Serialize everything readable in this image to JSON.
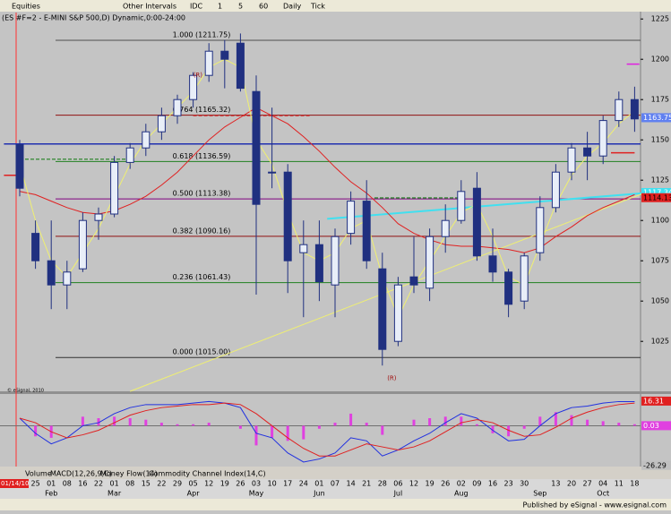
{
  "toolbar": {
    "items": [
      "Equities",
      "Other Intervals",
      "IDC",
      "1",
      "5",
      "60",
      "Daily",
      "Tick"
    ]
  },
  "tabs": [
    "Volume",
    "MACD(12,26,9,C)",
    "Money Flow(14)",
    "Commodity Channel Index(14,C)"
  ],
  "status": "Published by eSignal - www.esignal.com",
  "copyright": "© eSignal, 2010",
  "chart_data": {
    "type": "candlestick",
    "title": "(ES #F=2 - E-MINI S&P 500,D) Dynamic,0:00-24:00",
    "categories": [
      "01/14/10",
      "25",
      "01",
      "08",
      "16",
      "22",
      "01",
      "08",
      "15",
      "22",
      "29",
      "05",
      "12",
      "19",
      "26",
      "03",
      "10",
      "17",
      "24",
      "01",
      "07",
      "14",
      "21",
      "28",
      "06",
      "12",
      "19",
      "26",
      "02",
      "09",
      "16",
      "23",
      "30",
      null,
      "13",
      "20",
      "27",
      "04",
      "11",
      "18"
    ],
    "months": [
      null,
      null,
      "Feb",
      null,
      null,
      null,
      "Mar",
      null,
      null,
      null,
      null,
      "Apr",
      null,
      null,
      null,
      "May",
      null,
      null,
      null,
      "Jun",
      null,
      null,
      null,
      null,
      "Jul",
      null,
      null,
      null,
      "Aug",
      null,
      null,
      null,
      null,
      "Sep",
      null,
      null,
      null,
      "Oct",
      null,
      null
    ],
    "open": [
      1147,
      1092,
      1075,
      1060,
      1070,
      1100,
      1104,
      1136,
      1145,
      1155,
      1165,
      1175,
      1190,
      1205,
      1210,
      1180,
      1130,
      1130,
      1080,
      1085,
      1060,
      1092,
      1112,
      1070,
      1025,
      1065,
      1058,
      1090,
      1100,
      1120,
      1078,
      1068,
      1050,
      1080,
      1108,
      1130,
      1145,
      1140,
      1162,
      1175
    ],
    "high": [
      1150,
      1100,
      1100,
      1075,
      1105,
      1108,
      1140,
      1148,
      1160,
      1170,
      1178,
      1192,
      1210,
      1212,
      1216,
      1190,
      1170,
      1135,
      1100,
      1100,
      1095,
      1118,
      1125,
      1080,
      1065,
      1090,
      1095,
      1110,
      1125,
      1130,
      1095,
      1070,
      1080,
      1115,
      1135,
      1148,
      1155,
      1165,
      1180,
      1183
    ],
    "low": [
      1115,
      1070,
      1045,
      1045,
      1068,
      1088,
      1102,
      1132,
      1140,
      1150,
      1160,
      1170,
      1186,
      1182,
      1180,
      1054,
      1120,
      1055,
      1040,
      1050,
      1040,
      1085,
      1070,
      1010,
      1022,
      1055,
      1050,
      1080,
      1098,
      1075,
      1062,
      1040,
      1045,
      1075,
      1105,
      1125,
      1125,
      1135,
      1158,
      1155
    ],
    "close": [
      1120,
      1075,
      1060,
      1068,
      1100,
      1104,
      1136,
      1145,
      1155,
      1165,
      1175,
      1190,
      1205,
      1200,
      1182,
      1110,
      1130,
      1075,
      1085,
      1062,
      1090,
      1112,
      1075,
      1020,
      1060,
      1060,
      1090,
      1100,
      1118,
      1078,
      1068,
      1048,
      1078,
      1108,
      1130,
      1145,
      1140,
      1162,
      1175,
      1163
    ],
    "up_color": "#e8eef8",
    "down_color": "#203080",
    "edge_color": "#203080",
    "series": [
      {
        "color": "#e02020",
        "values": [
          1118,
          1116,
          1112,
          1108,
          1105,
          1104,
          1106,
          1110,
          1115,
          1122,
          1130,
          1140,
          1150,
          1158,
          1164,
          1170,
          1165,
          1160,
          1152,
          1143,
          1133,
          1124,
          1117,
          1108,
          1098,
          1092,
          1088,
          1085,
          1084,
          1084,
          1083,
          1082,
          1080,
          1083,
          1090,
          1096,
          1103,
          1108,
          1112,
          1116
        ]
      },
      {
        "color": "#f0f070",
        "values": [
          1135,
          1100,
          1075,
          1065,
          1080,
          1095,
          1115,
          1135,
          1150,
          1160,
          1170,
          1180,
          1195,
          1200,
          1195,
          1150,
          1135,
          1105,
          1080,
          1075,
          1080,
          1095,
          1100,
          1065,
          1040,
          1060,
          1075,
          1090,
          1105,
          1110,
          1090,
          1065,
          1060,
          1085,
          1110,
          1128,
          1140,
          1148,
          1160,
          1168
        ]
      }
    ],
    "levels": [
      {
        "value": 1211.75,
        "label": "1.000 (1211.75)",
        "color": "#505050"
      },
      {
        "value": 1165.32,
        "label": "0.764 (1165.32)",
        "color": "#901010"
      },
      {
        "value": 1136.59,
        "label": "0.618 (1136.59)",
        "color": "#208020"
      },
      {
        "value": 1113.38,
        "label": "0.500 (1113.38)",
        "color": "#800080"
      },
      {
        "value": 1090.16,
        "label": "0.382 (1090.16)",
        "color": "#901010"
      },
      {
        "value": 1061.43,
        "label": "0.236 (1061.43)",
        "color": "#208020"
      },
      {
        "value": 1015,
        "label": "0.000 (1015.00)",
        "color": "#303030"
      }
    ],
    "hlines": [
      {
        "value": 1147.5,
        "color": "#2030b0",
        "from": -1,
        "to": 39.6,
        "dash": false
      },
      {
        "value": 1165,
        "color": "#d02020",
        "from": 11,
        "to": 18.5,
        "dash": true
      },
      {
        "value": 1138,
        "color": "#208020",
        "from": 0,
        "to": 7,
        "dash": true
      },
      {
        "value": 1128,
        "color": "#e02020",
        "from": -1,
        "to": 0,
        "dash": false
      },
      {
        "value": 1114,
        "color": "#208020",
        "from": 22.5,
        "to": 28,
        "dash": true
      },
      {
        "value": 1142,
        "color": "#e02020",
        "from": 37.5,
        "to": 39,
        "dash": false
      },
      {
        "value": 1197,
        "color": "#e020e0",
        "from": 38.5,
        "to": 39.3,
        "dash": false
      }
    ],
    "trendlines": [
      {
        "color": "#40e0f0",
        "x": [
          19.5,
          39.6
        ],
        "y": [
          1101,
          1117
        ]
      },
      {
        "color": "#f0f070",
        "x": [
          7,
          39.6
        ],
        "y": [
          994,
          1117
        ]
      }
    ],
    "annotations": [
      {
        "text": "(R)",
        "x": 11.3,
        "y": 1190
      },
      {
        "text": "(R)",
        "x": 23.6,
        "y": 1002
      }
    ],
    "tags": [
      {
        "value": 1163.75,
        "color": "#6080f0",
        "text_color": "#ffffff"
      },
      {
        "value": 1117.34,
        "color": "#40e0f0",
        "text_color": "#ffffff"
      },
      {
        "value": 1114.13,
        "color": "#e02020",
        "text_color": "#000000"
      }
    ],
    "ylim": [
      994,
      1229
    ],
    "yticks": [
      1025,
      1050,
      1075,
      1100,
      1125,
      1150,
      1175,
      1200,
      1225
    ],
    "macd": {
      "ylim": [
        -27,
        21
      ],
      "line": {
        "color": "#2030e0",
        "values": [
          5,
          -5,
          -12,
          -8,
          0,
          2,
          8,
          12,
          14,
          14,
          14,
          15,
          16,
          15,
          12,
          -5,
          -8,
          -18,
          -24,
          -22,
          -18,
          -8,
          -10,
          -20,
          -16,
          -10,
          -5,
          2,
          8,
          5,
          -3,
          -10,
          -9,
          0,
          8,
          12,
          13,
          15,
          16,
          16
        ]
      },
      "signal": {
        "color": "#e02020",
        "values": [
          5,
          2,
          -4,
          -8,
          -6,
          -3,
          2,
          7,
          10,
          12,
          13,
          14,
          14,
          15,
          14,
          8,
          0,
          -8,
          -15,
          -20,
          -20,
          -16,
          -12,
          -14,
          -16,
          -14,
          -10,
          -4,
          2,
          4,
          2,
          -3,
          -7,
          -6,
          -1,
          5,
          9,
          12,
          14,
          15
        ]
      },
      "histogram": {
        "color": "#e040e0",
        "values": [
          0,
          -7,
          -8,
          0,
          6,
          5,
          6,
          5,
          4,
          2,
          1,
          1,
          2,
          0,
          -2,
          -13,
          -8,
          -10,
          -9,
          -2,
          2,
          8,
          2,
          -6,
          0,
          4,
          5,
          6,
          6,
          1,
          -5,
          -7,
          -2,
          6,
          9,
          7,
          4,
          3,
          2,
          1
        ]
      },
      "tags": [
        {
          "value": 16.31,
          "color": "#e02020",
          "text_color": "#ffffff"
        },
        {
          "value": 0.03,
          "color": "#e040e0",
          "text_color": "#ffffff"
        },
        {
          "value": -26.29,
          "color": "#c0c0c0",
          "text_color": "#000000"
        }
      ]
    }
  }
}
